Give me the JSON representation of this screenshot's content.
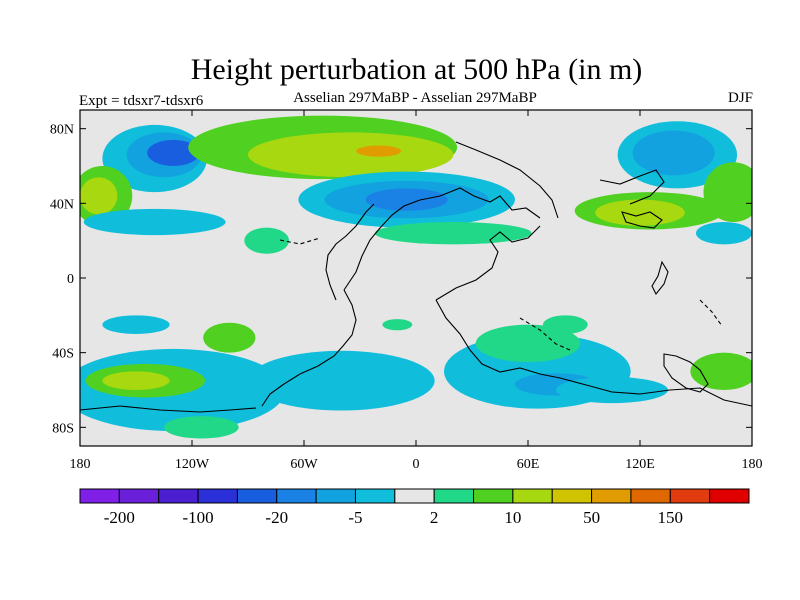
{
  "title": "Height perturbation at 500 hPa (in m)",
  "subtitle_left": "Expt = tdsxr7-tdsxr6",
  "subtitle_center": "Asselian 297MaBP - Asselian 297MaBP",
  "subtitle_right": "DJF",
  "axes": {
    "y_ticks": [
      {
        "value": 80,
        "label": "80N"
      },
      {
        "value": 40,
        "label": "40N"
      },
      {
        "value": 0,
        "label": "0"
      },
      {
        "value": -40,
        "label": "40S"
      },
      {
        "value": -80,
        "label": "80S"
      }
    ],
    "x_ticks": [
      {
        "value": -180,
        "label": "180"
      },
      {
        "value": -120,
        "label": "120W"
      },
      {
        "value": -60,
        "label": "60W"
      },
      {
        "value": 0,
        "label": "0"
      },
      {
        "value": 60,
        "label": "60E"
      },
      {
        "value": 120,
        "label": "120E"
      },
      {
        "value": 180,
        "label": "180"
      }
    ],
    "lon_range": [
      -180,
      180
    ],
    "lat_range": [
      -90,
      90
    ]
  },
  "colorbar": {
    "colors": [
      "#7f1fe8",
      "#6a1fd8",
      "#4a1fd0",
      "#2a2fd8",
      "#1a5ee0",
      "#1a82e4",
      "#12a2e0",
      "#10bedc",
      "#e6e6e6",
      "#20d888",
      "#50d020",
      "#a8d810",
      "#d0c400",
      "#e09c00",
      "#e06800",
      "#e03c10",
      "#e00000"
    ],
    "labels": [
      {
        "boundary": 1,
        "text": "-200"
      },
      {
        "boundary": 3,
        "text": "-100"
      },
      {
        "boundary": 5,
        "text": "-20"
      },
      {
        "boundary": 7,
        "text": "-5"
      },
      {
        "boundary": 9,
        "text": "2"
      },
      {
        "boundary": 11,
        "text": "10"
      },
      {
        "boundary": 13,
        "text": "50"
      },
      {
        "boundary": 15,
        "text": "150"
      }
    ]
  },
  "regions": [
    {
      "lon": -140,
      "lat": 64,
      "rlon": 28,
      "rlat": 18,
      "level": 7
    },
    {
      "lon": -135,
      "lat": 66,
      "rlon": 20,
      "rlat": 12,
      "level": 6
    },
    {
      "lon": -130,
      "lat": 67,
      "rlon": 14,
      "rlat": 7,
      "level": 4
    },
    {
      "lon": -168,
      "lat": 44,
      "rlon": 16,
      "rlat": 16,
      "level": 10
    },
    {
      "lon": -170,
      "lat": 44,
      "rlon": 10,
      "rlat": 10,
      "level": 11
    },
    {
      "lon": -140,
      "lat": 30,
      "rlon": 38,
      "rlat": 7,
      "level": 7
    },
    {
      "lon": -50,
      "lat": 70,
      "rlon": 72,
      "rlat": 17,
      "level": 10
    },
    {
      "lon": -35,
      "lat": 66,
      "rlon": 55,
      "rlat": 12,
      "level": 11
    },
    {
      "lon": -20,
      "lat": 68,
      "rlon": 12,
      "rlat": 3,
      "level": 13
    },
    {
      "lon": -5,
      "lat": 42,
      "rlon": 58,
      "rlat": 15,
      "level": 7
    },
    {
      "lon": -5,
      "lat": 42,
      "rlon": 44,
      "rlat": 10,
      "level": 6
    },
    {
      "lon": -5,
      "lat": 42,
      "rlon": 22,
      "rlat": 6,
      "level": 5
    },
    {
      "lon": 20,
      "lat": 24,
      "rlon": 42,
      "rlat": 6,
      "level": 9
    },
    {
      "lon": -80,
      "lat": 20,
      "rlon": 12,
      "rlat": 7,
      "level": 9
    },
    {
      "lon": 140,
      "lat": 66,
      "rlon": 32,
      "rlat": 18,
      "level": 7
    },
    {
      "lon": 138,
      "lat": 67,
      "rlon": 22,
      "rlat": 12,
      "level": 6
    },
    {
      "lon": 125,
      "lat": 36,
      "rlon": 40,
      "rlat": 10,
      "level": 10
    },
    {
      "lon": 120,
      "lat": 35,
      "rlon": 24,
      "rlat": 7,
      "level": 11
    },
    {
      "lon": 170,
      "lat": 46,
      "rlon": 16,
      "rlat": 16,
      "level": 10
    },
    {
      "lon": 165,
      "lat": 24,
      "rlon": 15,
      "rlat": 6,
      "level": 7
    },
    {
      "lon": -130,
      "lat": -60,
      "rlon": 60,
      "rlat": 22,
      "level": 7
    },
    {
      "lon": -145,
      "lat": -55,
      "rlon": 32,
      "rlat": 9,
      "level": 10
    },
    {
      "lon": -150,
      "lat": -55,
      "rlon": 18,
      "rlat": 5,
      "level": 11
    },
    {
      "lon": -150,
      "lat": -25,
      "rlon": 18,
      "rlat": 5,
      "level": 7
    },
    {
      "lon": -100,
      "lat": -32,
      "rlon": 14,
      "rlat": 8,
      "level": 10
    },
    {
      "lon": -40,
      "lat": -55,
      "rlon": 50,
      "rlat": 16,
      "level": 7
    },
    {
      "lon": -10,
      "lat": -25,
      "rlon": 8,
      "rlat": 3,
      "level": 9
    },
    {
      "lon": 65,
      "lat": -50,
      "rlon": 50,
      "rlat": 20,
      "level": 7
    },
    {
      "lon": 60,
      "lat": -35,
      "rlon": 28,
      "rlat": 10,
      "level": 9
    },
    {
      "lon": 75,
      "lat": -57,
      "rlon": 22,
      "rlat": 6,
      "level": 6
    },
    {
      "lon": 105,
      "lat": -60,
      "rlon": 30,
      "rlat": 7,
      "level": 7
    },
    {
      "lon": 165,
      "lat": -50,
      "rlon": 18,
      "rlat": 10,
      "level": 10
    },
    {
      "lon": -115,
      "lat": -80,
      "rlon": 20,
      "rlat": 6,
      "level": 9
    },
    {
      "lon": 80,
      "lat": -25,
      "rlon": 12,
      "rlat": 5,
      "level": 9
    }
  ]
}
